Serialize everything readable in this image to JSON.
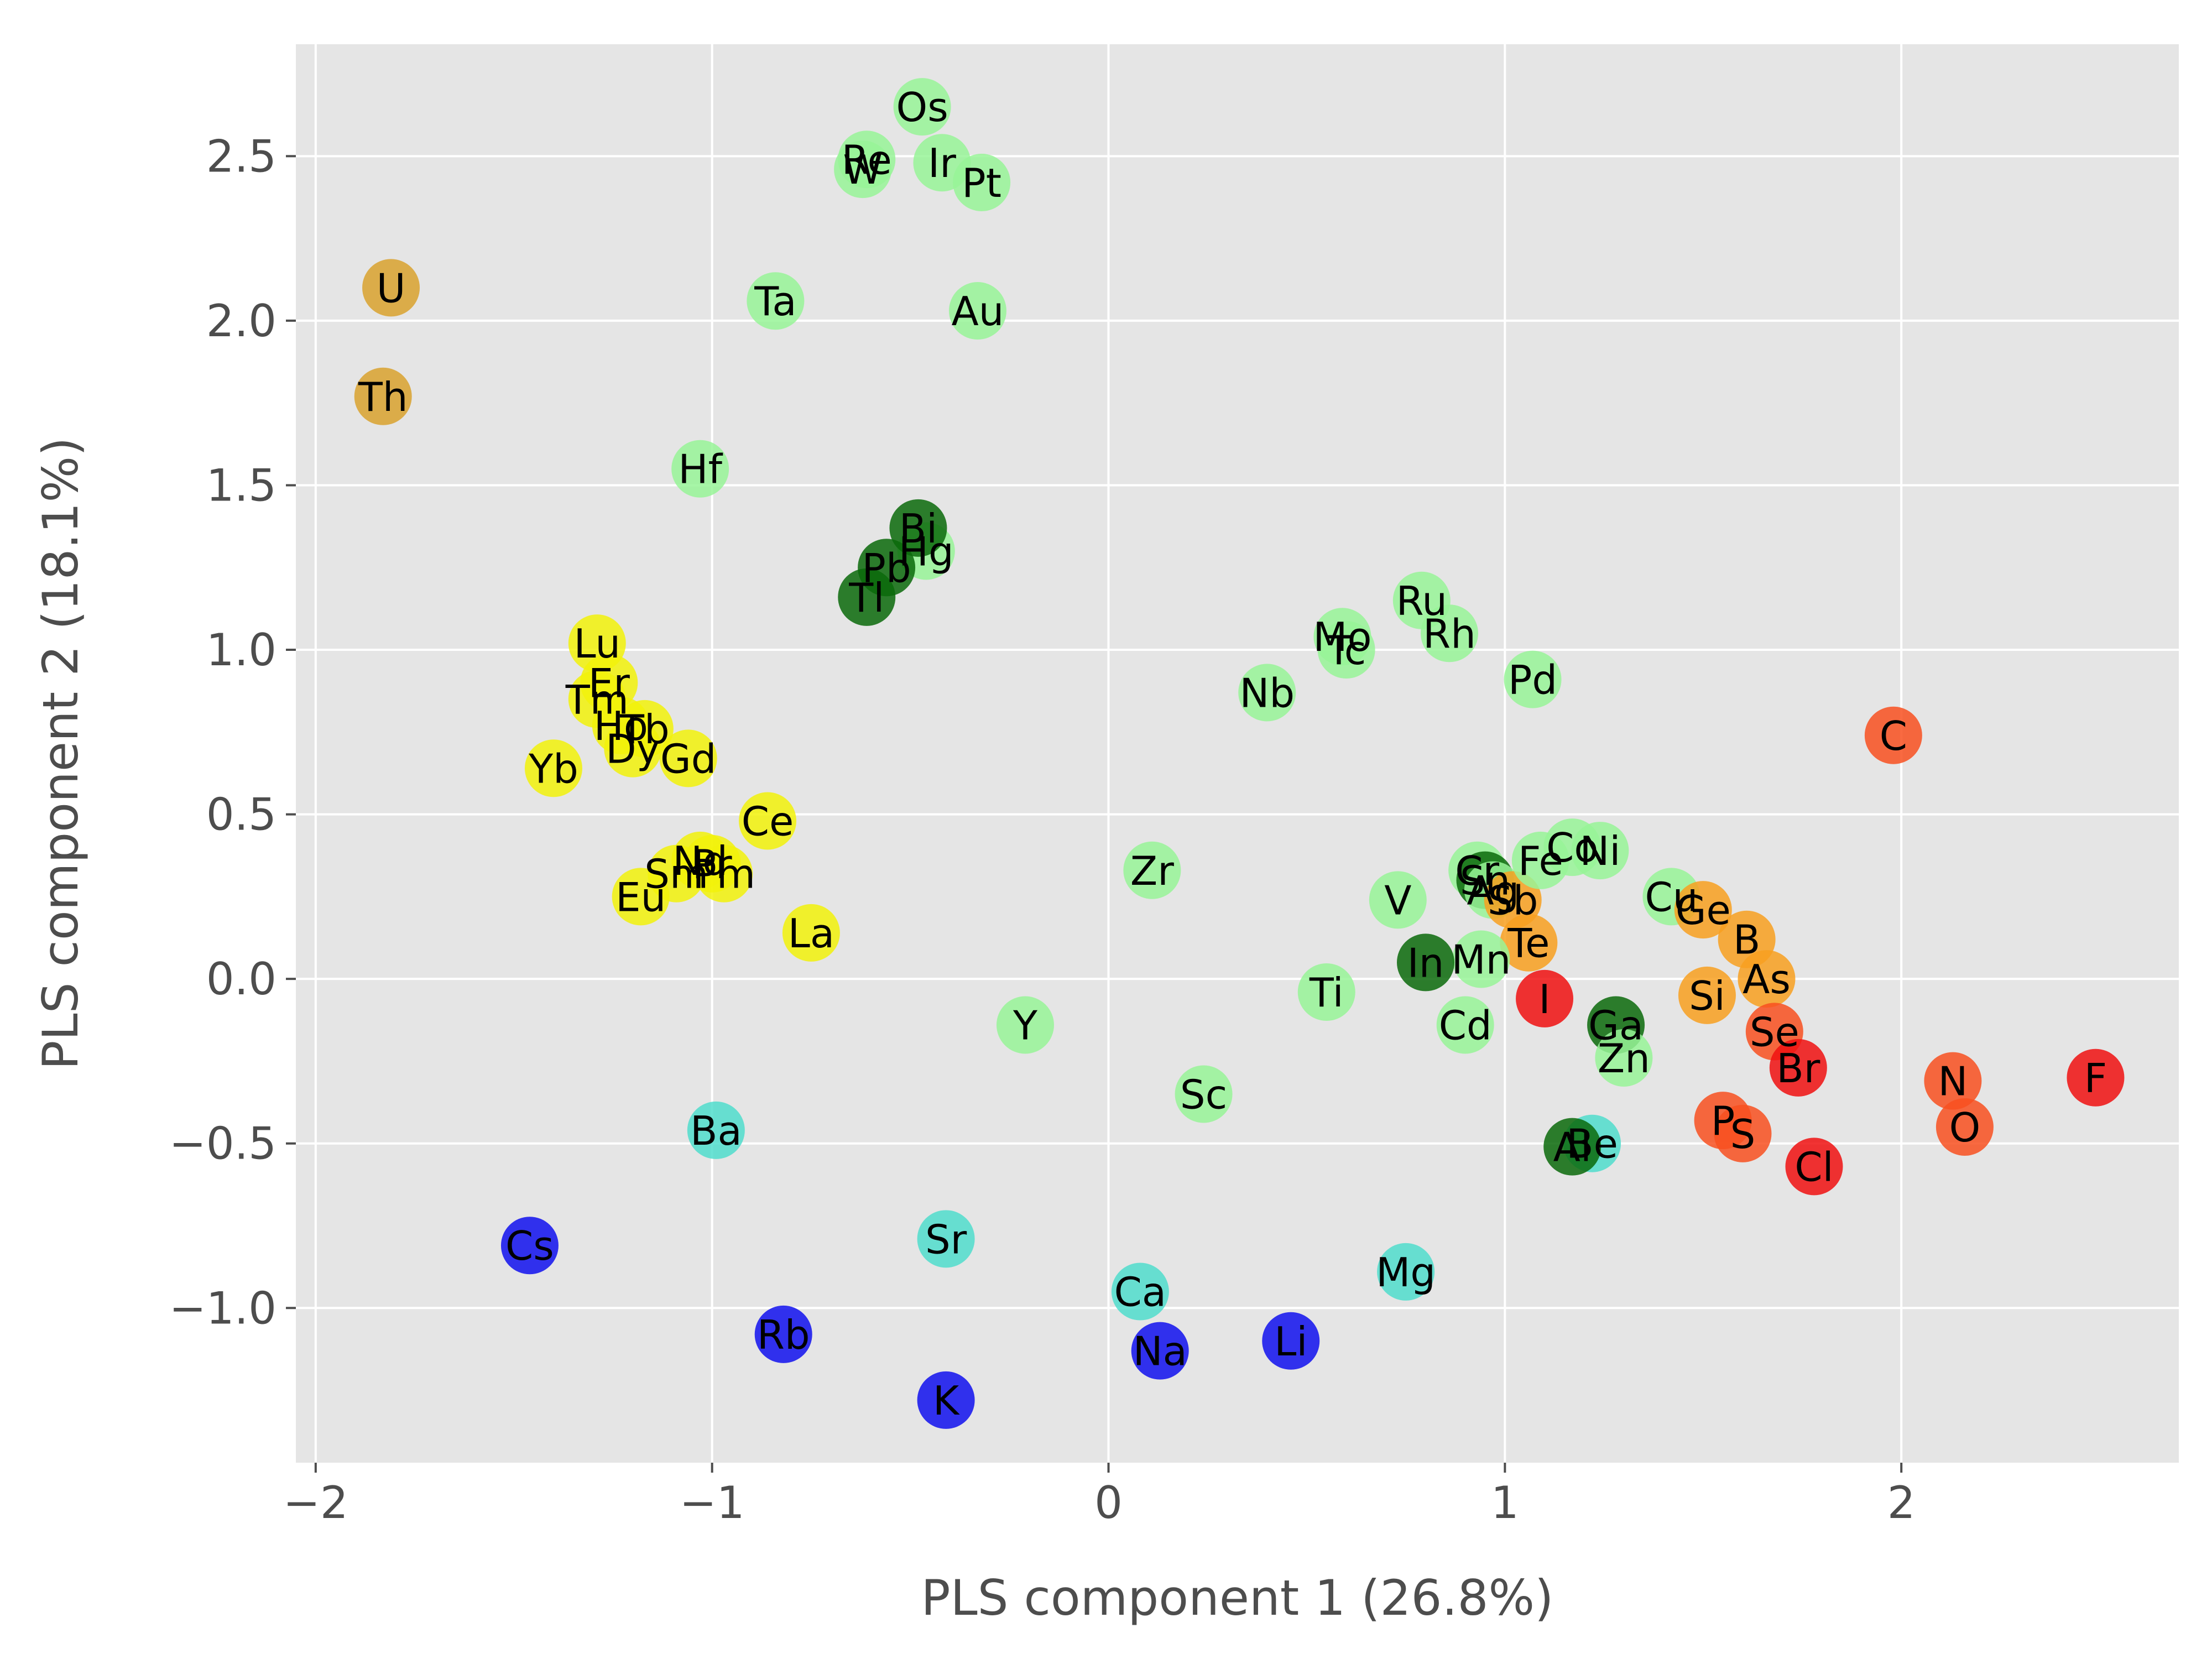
{
  "chart_data": {
    "type": "scatter",
    "xlabel": "PLS component 1 (26.8%)",
    "ylabel": "PLS component 2 (18.1%)",
    "xlim": [
      -2.05,
      2.7
    ],
    "ylim": [
      -1.47,
      2.84
    ],
    "grid": true,
    "x_ticks": [
      {
        "value": -2,
        "label": "−2"
      },
      {
        "value": -1,
        "label": "−1"
      },
      {
        "value": 0,
        "label": "0"
      },
      {
        "value": 1,
        "label": "1"
      },
      {
        "value": 2,
        "label": "2"
      }
    ],
    "y_ticks": [
      {
        "value": -1.0,
        "label": "−1.0"
      },
      {
        "value": -0.5,
        "label": "−0.5"
      },
      {
        "value": 0.0,
        "label": "0.0"
      },
      {
        "value": 0.5,
        "label": "0.5"
      },
      {
        "value": 1.0,
        "label": "1.0"
      },
      {
        "value": 1.5,
        "label": "1.5"
      },
      {
        "value": 2.0,
        "label": "2.0"
      },
      {
        "value": 2.5,
        "label": "2.5"
      }
    ],
    "group_colors": {
      "alkali": "#1010ee",
      "alkaline-earth": "#50ddcc",
      "transition": "#98f598",
      "post-transition": "#0a6a0a",
      "lanthanide": "#f2f20a",
      "actinide": "#d9a22e",
      "metalloid": "#f8a020",
      "nonmetal": "#f85020",
      "halogen": "#f01010"
    },
    "points": [
      {
        "label": "Os",
        "x": -0.47,
        "y": 2.65,
        "group": "transition"
      },
      {
        "label": "Re",
        "x": -0.61,
        "y": 2.49,
        "group": "transition"
      },
      {
        "label": "W",
        "x": -0.62,
        "y": 2.46,
        "group": "transition"
      },
      {
        "label": "Ir",
        "x": -0.42,
        "y": 2.48,
        "group": "transition"
      },
      {
        "label": "Pt",
        "x": -0.32,
        "y": 2.42,
        "group": "transition"
      },
      {
        "label": "Ta",
        "x": -0.84,
        "y": 2.06,
        "group": "transition"
      },
      {
        "label": "Au",
        "x": -0.33,
        "y": 2.03,
        "group": "transition"
      },
      {
        "label": "Hf",
        "x": -1.03,
        "y": 1.55,
        "group": "transition"
      },
      {
        "label": "Hg",
        "x": -0.46,
        "y": 1.3,
        "group": "transition"
      },
      {
        "label": "Bi",
        "x": -0.48,
        "y": 1.37,
        "group": "post-transition"
      },
      {
        "label": "Pb",
        "x": -0.56,
        "y": 1.25,
        "group": "post-transition"
      },
      {
        "label": "Tl",
        "x": -0.61,
        "y": 1.16,
        "group": "post-transition"
      },
      {
        "label": "U",
        "x": -1.81,
        "y": 2.1,
        "group": "actinide"
      },
      {
        "label": "Th",
        "x": -1.83,
        "y": 1.77,
        "group": "actinide"
      },
      {
        "label": "Lu",
        "x": -1.29,
        "y": 1.02,
        "group": "lanthanide"
      },
      {
        "label": "Er",
        "x": -1.26,
        "y": 0.9,
        "group": "lanthanide"
      },
      {
        "label": "Tm",
        "x": -1.29,
        "y": 0.85,
        "group": "lanthanide"
      },
      {
        "label": "Ho",
        "x": -1.23,
        "y": 0.77,
        "group": "lanthanide"
      },
      {
        "label": "Tb",
        "x": -1.17,
        "y": 0.76,
        "group": "lanthanide"
      },
      {
        "label": "Dy",
        "x": -1.2,
        "y": 0.7,
        "group": "lanthanide"
      },
      {
        "label": "Gd",
        "x": -1.06,
        "y": 0.67,
        "group": "lanthanide"
      },
      {
        "label": "Yb",
        "x": -1.4,
        "y": 0.64,
        "group": "lanthanide"
      },
      {
        "label": "Ce",
        "x": -0.86,
        "y": 0.48,
        "group": "lanthanide"
      },
      {
        "label": "Nd",
        "x": -1.03,
        "y": 0.36,
        "group": "lanthanide"
      },
      {
        "label": "Pr",
        "x": -1.0,
        "y": 0.35,
        "group": "lanthanide"
      },
      {
        "label": "Sm",
        "x": -1.09,
        "y": 0.32,
        "group": "lanthanide"
      },
      {
        "label": "Pm",
        "x": -0.97,
        "y": 0.32,
        "group": "lanthanide"
      },
      {
        "label": "Eu",
        "x": -1.18,
        "y": 0.25,
        "group": "lanthanide"
      },
      {
        "label": "La",
        "x": -0.75,
        "y": 0.14,
        "group": "lanthanide"
      },
      {
        "label": "Mo",
        "x": 0.59,
        "y": 1.04,
        "group": "transition"
      },
      {
        "label": "Tc",
        "x": 0.6,
        "y": 1.0,
        "group": "transition"
      },
      {
        "label": "Ru",
        "x": 0.79,
        "y": 1.15,
        "group": "transition"
      },
      {
        "label": "Rh",
        "x": 0.86,
        "y": 1.05,
        "group": "transition"
      },
      {
        "label": "Pd",
        "x": 1.07,
        "y": 0.91,
        "group": "transition"
      },
      {
        "label": "Nb",
        "x": 0.4,
        "y": 0.87,
        "group": "transition"
      },
      {
        "label": "Zr",
        "x": 0.11,
        "y": 0.33,
        "group": "transition"
      },
      {
        "label": "V",
        "x": 0.73,
        "y": 0.24,
        "group": "transition"
      },
      {
        "label": "Cr",
        "x": 0.93,
        "y": 0.33,
        "group": "transition"
      },
      {
        "label": "Sn",
        "x": 0.95,
        "y": 0.3,
        "group": "post-transition"
      },
      {
        "label": "Ag",
        "x": 0.97,
        "y": 0.27,
        "group": "transition"
      },
      {
        "label": "Sb",
        "x": 1.02,
        "y": 0.24,
        "group": "metalloid"
      },
      {
        "label": "Fe",
        "x": 1.09,
        "y": 0.36,
        "group": "transition"
      },
      {
        "label": "Co",
        "x": 1.17,
        "y": 0.4,
        "group": "transition"
      },
      {
        "label": "Ni",
        "x": 1.24,
        "y": 0.39,
        "group": "transition"
      },
      {
        "label": "Cu",
        "x": 1.42,
        "y": 0.25,
        "group": "transition"
      },
      {
        "label": "Ge",
        "x": 1.5,
        "y": 0.21,
        "group": "metalloid"
      },
      {
        "label": "B",
        "x": 1.61,
        "y": 0.12,
        "group": "metalloid"
      },
      {
        "label": "As",
        "x": 1.66,
        "y": 0.0,
        "group": "metalloid"
      },
      {
        "label": "Te",
        "x": 1.06,
        "y": 0.11,
        "group": "metalloid"
      },
      {
        "label": "Mn",
        "x": 0.94,
        "y": 0.06,
        "group": "transition"
      },
      {
        "label": "In",
        "x": 0.8,
        "y": 0.05,
        "group": "post-transition"
      },
      {
        "label": "Ti",
        "x": 0.55,
        "y": -0.04,
        "group": "transition"
      },
      {
        "label": "Si",
        "x": 1.51,
        "y": -0.05,
        "group": "metalloid"
      },
      {
        "label": "I",
        "x": 1.1,
        "y": -0.06,
        "group": "halogen"
      },
      {
        "label": "Se",
        "x": 1.68,
        "y": -0.16,
        "group": "nonmetal"
      },
      {
        "label": "Ga",
        "x": 1.28,
        "y": -0.14,
        "group": "post-transition"
      },
      {
        "label": "Cd",
        "x": 0.9,
        "y": -0.14,
        "group": "transition"
      },
      {
        "label": "Zn",
        "x": 1.3,
        "y": -0.24,
        "group": "transition"
      },
      {
        "label": "Br",
        "x": 1.74,
        "y": -0.27,
        "group": "halogen"
      },
      {
        "label": "Y",
        "x": -0.21,
        "y": -0.14,
        "group": "transition"
      },
      {
        "label": "Sc",
        "x": 0.24,
        "y": -0.35,
        "group": "transition"
      },
      {
        "label": "C",
        "x": 1.98,
        "y": 0.74,
        "group": "nonmetal"
      },
      {
        "label": "N",
        "x": 2.13,
        "y": -0.31,
        "group": "nonmetal"
      },
      {
        "label": "F",
        "x": 2.49,
        "y": -0.3,
        "group": "halogen"
      },
      {
        "label": "O",
        "x": 2.16,
        "y": -0.45,
        "group": "nonmetal"
      },
      {
        "label": "P",
        "x": 1.55,
        "y": -0.43,
        "group": "nonmetal"
      },
      {
        "label": "S",
        "x": 1.6,
        "y": -0.47,
        "group": "nonmetal"
      },
      {
        "label": "Cl",
        "x": 1.78,
        "y": -0.57,
        "group": "halogen"
      },
      {
        "label": "Be",
        "x": 1.22,
        "y": -0.5,
        "group": "alkaline-earth"
      },
      {
        "label": "Al",
        "x": 1.17,
        "y": -0.51,
        "group": "post-transition"
      },
      {
        "label": "Ba",
        "x": -0.99,
        "y": -0.46,
        "group": "alkaline-earth"
      },
      {
        "label": "Sr",
        "x": -0.41,
        "y": -0.79,
        "group": "alkaline-earth"
      },
      {
        "label": "Mg",
        "x": 0.75,
        "y": -0.89,
        "group": "alkaline-earth"
      },
      {
        "label": "Ca",
        "x": 0.08,
        "y": -0.95,
        "group": "alkaline-earth"
      },
      {
        "label": "Cs",
        "x": -1.46,
        "y": -0.81,
        "group": "alkali"
      },
      {
        "label": "Rb",
        "x": -0.82,
        "y": -1.08,
        "group": "alkali"
      },
      {
        "label": "Na",
        "x": 0.13,
        "y": -1.13,
        "group": "alkali"
      },
      {
        "label": "Li",
        "x": 0.46,
        "y": -1.1,
        "group": "alkali"
      },
      {
        "label": "K",
        "x": -0.41,
        "y": -1.28,
        "group": "alkali"
      }
    ]
  }
}
